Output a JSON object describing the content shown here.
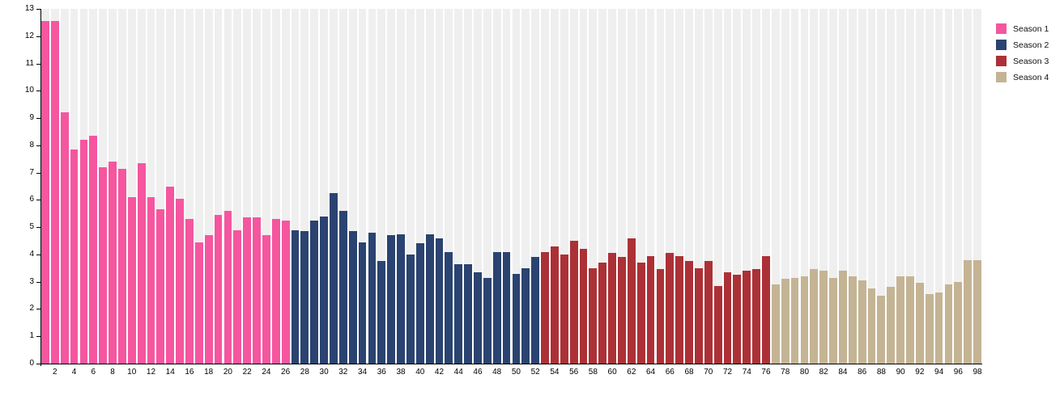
{
  "chart_data": {
    "type": "bar",
    "title": "",
    "xlabel": "",
    "ylabel": "",
    "ylim": [
      0,
      13
    ],
    "y_ticks": [
      0,
      1,
      2,
      3,
      4,
      5,
      6,
      7,
      8,
      9,
      10,
      11,
      12,
      13
    ],
    "x_ticks": [
      2,
      4,
      6,
      8,
      10,
      12,
      14,
      16,
      18,
      20,
      22,
      24,
      26,
      28,
      30,
      32,
      34,
      36,
      38,
      40,
      42,
      44,
      46,
      48,
      50,
      52,
      54,
      56,
      58,
      60,
      62,
      64,
      66,
      68,
      70,
      72,
      74,
      76,
      78,
      80,
      82,
      84,
      86,
      88,
      90,
      92,
      94,
      96,
      98
    ],
    "episode_count": 98,
    "grid": "off",
    "background_stripes": true,
    "legend_position": "top-right",
    "colors": {
      "stripe": "#EFEFEF",
      "axis": "#000000",
      "background": "#FFFFFF"
    },
    "series": [
      {
        "name": "Season 1",
        "color": "#F5569F",
        "start_episode": 1,
        "end_episode": 26,
        "values": [
          12.55,
          12.55,
          9.2,
          7.85,
          8.2,
          8.35,
          7.2,
          7.4,
          7.15,
          6.1,
          7.35,
          6.1,
          5.65,
          6.5,
          6.05,
          5.3,
          4.45,
          4.7,
          5.45,
          5.6,
          4.9,
          5.35,
          5.35,
          4.7,
          5.3,
          5.25
        ]
      },
      {
        "name": "Season 2",
        "color": "#2A4370",
        "start_episode": 27,
        "end_episode": 52,
        "values": [
          4.9,
          4.85,
          5.25,
          5.4,
          6.25,
          5.6,
          4.85,
          4.45,
          4.8,
          3.75,
          4.7,
          4.75,
          4.0,
          4.4,
          4.75,
          4.6,
          4.1,
          3.65,
          3.65,
          3.35,
          3.15,
          4.1,
          4.1,
          3.3,
          3.5,
          3.9
        ]
      },
      {
        "name": "Season 3",
        "color": "#AC3136",
        "start_episode": 53,
        "end_episode": 76,
        "values": [
          4.1,
          4.3,
          4.0,
          4.5,
          4.2,
          3.5,
          3.7,
          4.05,
          3.9,
          4.6,
          3.7,
          3.95,
          3.45,
          4.05,
          3.95,
          3.75,
          3.5,
          3.75,
          2.85,
          3.35,
          3.25,
          3.4,
          3.45,
          3.95
        ]
      },
      {
        "name": "Season 4",
        "color": "#C4B494",
        "start_episode": 77,
        "end_episode": 98,
        "values": [
          2.9,
          3.1,
          3.15,
          3.2,
          3.45,
          3.4,
          3.15,
          3.4,
          3.2,
          3.05,
          2.75,
          2.5,
          2.8,
          3.2,
          3.2,
          2.95,
          2.55,
          2.6,
          2.9,
          3.0,
          3.8,
          3.8
        ]
      }
    ]
  }
}
